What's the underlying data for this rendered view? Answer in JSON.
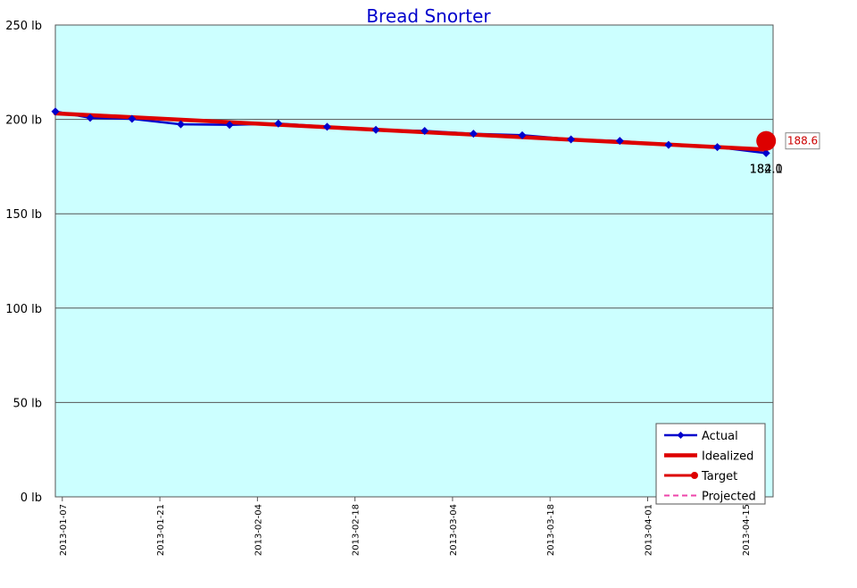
{
  "chart_data": {
    "type": "line",
    "title": "Bread Snorter",
    "y_axis": {
      "min": 0,
      "max": 250,
      "ticks": [
        0,
        50,
        100,
        150,
        200,
        250
      ],
      "tick_labels": [
        "0 lb",
        "50 lb",
        "100 lb",
        "150 lb",
        "200 lb",
        "250 lb"
      ]
    },
    "x_axis": {
      "min": "2013-01-06",
      "max": "2013-04-19",
      "tick_labels": [
        "2013-01-07",
        "2013-01-21",
        "2013-02-04",
        "2013-02-18",
        "2013-03-04",
        "2013-03-18",
        "2013-04-01",
        "2013-04-15"
      ]
    },
    "grid": true,
    "legend_position": "bottom-right",
    "series": [
      {
        "name": "Actual",
        "color": "#0000cc",
        "marker": "diamond",
        "points": [
          {
            "x": "2013-01-06",
            "y": 204.2
          },
          {
            "x": "2013-01-11",
            "y": 200.8
          },
          {
            "x": "2013-01-17",
            "y": 200.3
          },
          {
            "x": "2013-01-24",
            "y": 197.4
          },
          {
            "x": "2013-01-31",
            "y": 197.1
          },
          {
            "x": "2013-02-07",
            "y": 197.8
          },
          {
            "x": "2013-02-14",
            "y": 196.1
          },
          {
            "x": "2013-02-21",
            "y": 194.5
          },
          {
            "x": "2013-02-28",
            "y": 193.9
          },
          {
            "x": "2013-03-07",
            "y": 192.4
          },
          {
            "x": "2013-03-14",
            "y": 191.6
          },
          {
            "x": "2013-03-21",
            "y": 189.4
          },
          {
            "x": "2013-03-28",
            "y": 188.6
          },
          {
            "x": "2013-04-04",
            "y": 186.5
          },
          {
            "x": "2013-04-11",
            "y": 185.3
          },
          {
            "x": "2013-04-18",
            "y": 182.1
          }
        ]
      },
      {
        "name": "Idealized",
        "color": "#dd0000",
        "points": [
          {
            "x": "2013-01-06",
            "y": 203.2
          },
          {
            "x": "2013-04-18",
            "y": 184.0
          }
        ]
      },
      {
        "name": "Target",
        "color": "#dd0000",
        "marker": "circle",
        "points": [
          {
            "x": "2013-04-18",
            "y": 188.6
          }
        ]
      },
      {
        "name": "Projected",
        "color": "#ee44aa",
        "dashed": true,
        "points": []
      }
    ],
    "annotations": {
      "end_value_overlay_1": "184.0",
      "end_value_overlay_2": "182.1",
      "target_callout": "188.6"
    }
  }
}
